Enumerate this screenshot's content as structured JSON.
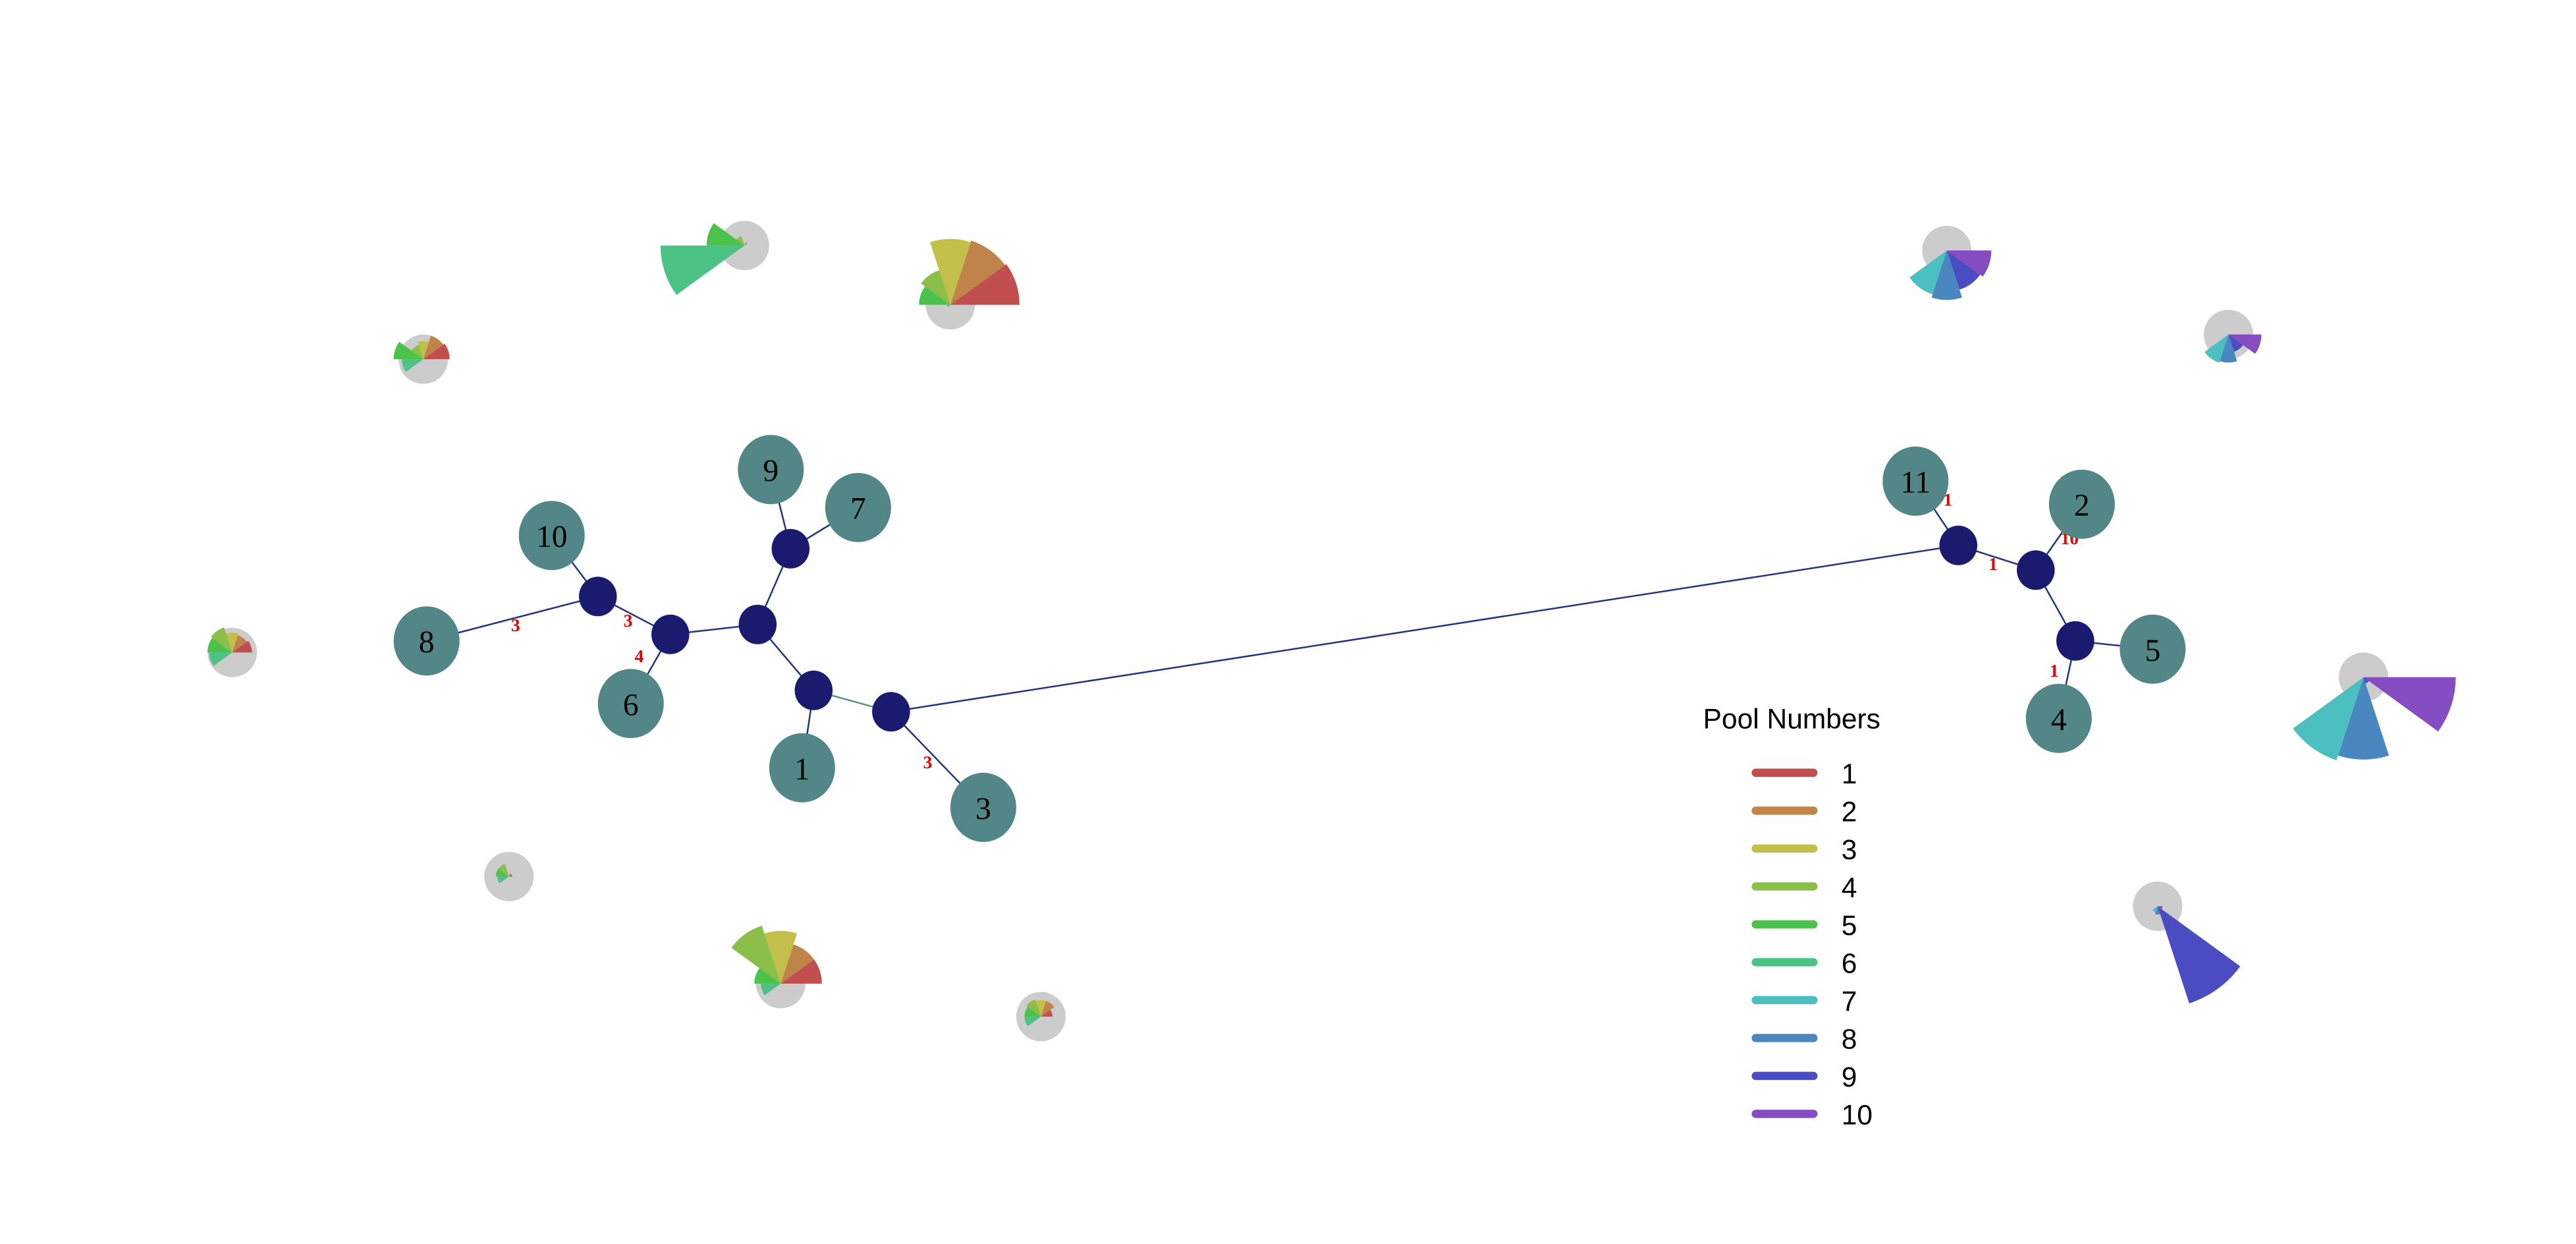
{
  "legend": {
    "title": "Pool Numbers",
    "items": [
      {
        "label": "1",
        "color": "#c24f4f"
      },
      {
        "label": "2",
        "color": "#c0834a"
      },
      {
        "label": "3",
        "color": "#c2c04a"
      },
      {
        "label": "4",
        "color": "#8bbf4a"
      },
      {
        "label": "5",
        "color": "#4cc24c"
      },
      {
        "label": "6",
        "color": "#4cc285"
      },
      {
        "label": "7",
        "color": "#4cc0c0"
      },
      {
        "label": "8",
        "color": "#4a86c0"
      },
      {
        "label": "9",
        "color": "#4c4cc2"
      },
      {
        "label": "10",
        "color": "#864cc2"
      }
    ]
  },
  "colors": {
    "pool_node": "#538686",
    "hub_node": "#1a1a6e",
    "edge": "#24347e",
    "edge_alt": "#5a8c8c",
    "glyph_base": "#cccccc",
    "edge_label": "#e00000"
  },
  "network": {
    "pool_nodes": [
      {
        "id": "P1",
        "label": "1"
      },
      {
        "id": "P2",
        "label": "2"
      },
      {
        "id": "P3",
        "label": "3"
      },
      {
        "id": "P4",
        "label": "4"
      },
      {
        "id": "P5",
        "label": "5"
      },
      {
        "id": "P6",
        "label": "6"
      },
      {
        "id": "P7",
        "label": "7"
      },
      {
        "id": "P8",
        "label": "8"
      },
      {
        "id": "P9",
        "label": "9"
      },
      {
        "id": "P10",
        "label": "10"
      },
      {
        "id": "P11",
        "label": "11"
      }
    ],
    "hub_nodes": [
      "hA",
      "hB",
      "hC",
      "hD",
      "hE",
      "hF",
      "hG",
      "hH",
      "hI"
    ],
    "edges": [
      {
        "from": "P10",
        "to": "hA",
        "label": ""
      },
      {
        "from": "P8",
        "to": "hA",
        "label": "3"
      },
      {
        "from": "hA",
        "to": "hB",
        "label": "3"
      },
      {
        "from": "hB",
        "to": "P6",
        "label": "4"
      },
      {
        "from": "hB",
        "to": "hC",
        "label": ""
      },
      {
        "from": "hC",
        "to": "hD",
        "label": ""
      },
      {
        "from": "hD",
        "to": "P9",
        "label": ""
      },
      {
        "from": "hD",
        "to": "P7",
        "label": ""
      },
      {
        "from": "hC",
        "to": "hE",
        "label": ""
      },
      {
        "from": "hE",
        "to": "P1",
        "label": ""
      },
      {
        "from": "hE",
        "to": "hF",
        "label": "",
        "alt": true
      },
      {
        "from": "hF",
        "to": "P3",
        "label": "3"
      },
      {
        "from": "hF",
        "to": "hG",
        "label": ""
      },
      {
        "from": "hG",
        "to": "P11",
        "label": "1"
      },
      {
        "from": "hG",
        "to": "hH",
        "label": "1"
      },
      {
        "from": "hH",
        "to": "P2",
        "label": "10"
      },
      {
        "from": "hH",
        "to": "hI",
        "label": ""
      },
      {
        "from": "hI",
        "to": "P5",
        "label": ""
      },
      {
        "from": "hI",
        "to": "P4",
        "label": "1"
      }
    ]
  },
  "glyphs": [
    {
      "name": "glyph-1",
      "values": [
        0,
        2,
        0,
        6,
        23,
        51,
        0,
        0,
        0,
        0
      ]
    },
    {
      "name": "glyph-2",
      "values": [
        42,
        41,
        40,
        22,
        19,
        2,
        0,
        0,
        0,
        0
      ]
    },
    {
      "name": "glyph-3",
      "values": [
        0,
        0,
        0,
        0,
        0,
        0,
        28,
        30,
        25,
        27
      ]
    },
    {
      "name": "glyph-4",
      "values": [
        0,
        0,
        0,
        0,
        0,
        0,
        18,
        17,
        11,
        20
      ]
    },
    {
      "name": "glyph-5",
      "values": [
        0,
        0,
        0,
        0,
        0,
        0,
        53,
        50,
        4,
        56
      ]
    },
    {
      "name": "glyph-6",
      "values": [
        0,
        0,
        0,
        0,
        0,
        0,
        4,
        5,
        62,
        3
      ]
    },
    {
      "name": "glyph-7",
      "values": [
        25,
        25,
        32,
        37,
        16,
        12,
        0,
        0,
        0,
        0
      ]
    },
    {
      "name": "glyph-8",
      "values": [
        16,
        15,
        11,
        9,
        18,
        13,
        0,
        0,
        0,
        0
      ]
    },
    {
      "name": "glyph-9",
      "values": [
        12,
        11,
        12,
        16,
        15,
        14,
        0,
        0,
        0,
        0
      ]
    },
    {
      "name": "glyph-10",
      "values": [
        2,
        2,
        0,
        8,
        8,
        7,
        0,
        0,
        0,
        0
      ]
    },
    {
      "name": "glyph-11",
      "values": [
        7,
        10,
        10,
        11,
        10,
        10,
        0,
        0,
        0,
        0
      ]
    }
  ]
}
